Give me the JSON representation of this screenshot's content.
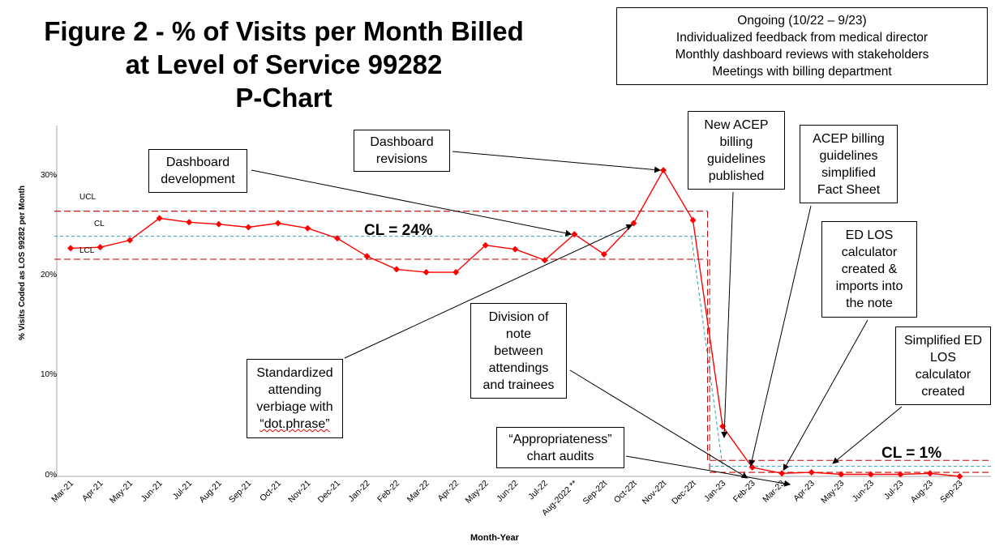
{
  "title": {
    "line1": "Figure 2 - % of Visits per Month Billed",
    "line2": "at Level of Service 99282",
    "line3": "P-Chart"
  },
  "ongoing_box": {
    "line1": "Ongoing (10/22 – 9/23)",
    "line2": "Individualized feedback from medical director",
    "line3": "Monthly dashboard reviews with stakeholders",
    "line4": "Meetings with billing department"
  },
  "annotations": {
    "dashboard_development": [
      "Dashboard",
      "development"
    ],
    "dashboard_revisions": [
      "Dashboard",
      "revisions"
    ],
    "new_acep": [
      "New ACEP",
      "billing",
      "guidelines",
      "published"
    ],
    "acep_simplified": [
      "ACEP billing",
      "guidelines",
      "simplified",
      "Fact Sheet"
    ],
    "ed_los_calc": [
      "ED LOS",
      "calculator",
      "created &",
      "imports into",
      "the note"
    ],
    "simplified_ed_los": [
      "Simplified ED",
      "LOS",
      "calculator",
      "created"
    ],
    "division_of_note": [
      "Division of",
      "note",
      "between",
      "attendings",
      "and trainees"
    ],
    "standardized": [
      "Standardized",
      "attending",
      "verbiage with",
      "“dot.phrase”"
    ],
    "appropriateness": [
      "“Appropriateness”",
      "chart audits"
    ]
  },
  "cl_labels": {
    "phase1": "CL = 24%",
    "phase2": "CL = 1%"
  },
  "line_labels": {
    "ucl": "UCL",
    "cl": "CL",
    "lcl": "LCL"
  },
  "colors": {
    "series": "#ff0000",
    "control_limits": "#c00000",
    "center_line": "#2e9fb0",
    "axis": "#a6a6a6"
  },
  "chart_data": {
    "type": "line",
    "xlabel": "Month-Year",
    "ylabel": "% Visits Coded as LOS 99282 per Month",
    "ylim": [
      0,
      35
    ],
    "yticks": [
      "0%",
      "10%",
      "20%",
      "30%"
    ],
    "ytick_values": [
      0,
      10,
      20,
      30
    ],
    "categories": [
      "Mar-21",
      "Apr-21",
      "May-21",
      "Jun-21",
      "Jul-21",
      "Aug-21",
      "Sep-21",
      "Oct-21",
      "Nov-21",
      "Dec-21",
      "Jan-22",
      "Feb-22",
      "Mar-22",
      "Apr-22",
      "May-22",
      "Jun-22",
      "Jul-22",
      "Aug-2022 **",
      "Sep-22t",
      "Oct-22t",
      "Nov-22t",
      "Dec-22t",
      "Jan-23",
      "Feb-23",
      "Mar-23",
      "Apr-23",
      "May-23",
      "Jun-23",
      "Jul-23",
      "Aug-23",
      "Sep-23"
    ],
    "series": [
      {
        "values": [
          22.8,
          22.9,
          23.6,
          25.8,
          25.4,
          25.2,
          24.9,
          25.3,
          24.8,
          23.8,
          22.0,
          20.7,
          20.4,
          20.4,
          23.1,
          22.7,
          21.6,
          24.2,
          22.2,
          25.3,
          30.6,
          25.6,
          5.0,
          0.9,
          0.3,
          0.4,
          0.2,
          0.2,
          0.2,
          0.3,
          0.0
        ]
      }
    ],
    "phases": [
      {
        "start": 0,
        "end": 21,
        "cl": 24.0,
        "ucl": 26.5,
        "lcl": 21.7
      },
      {
        "start": 22,
        "end": 30,
        "cl": 1.0,
        "ucl": 1.6,
        "lcl": 0.4
      }
    ],
    "grid": false,
    "legend": "none"
  }
}
